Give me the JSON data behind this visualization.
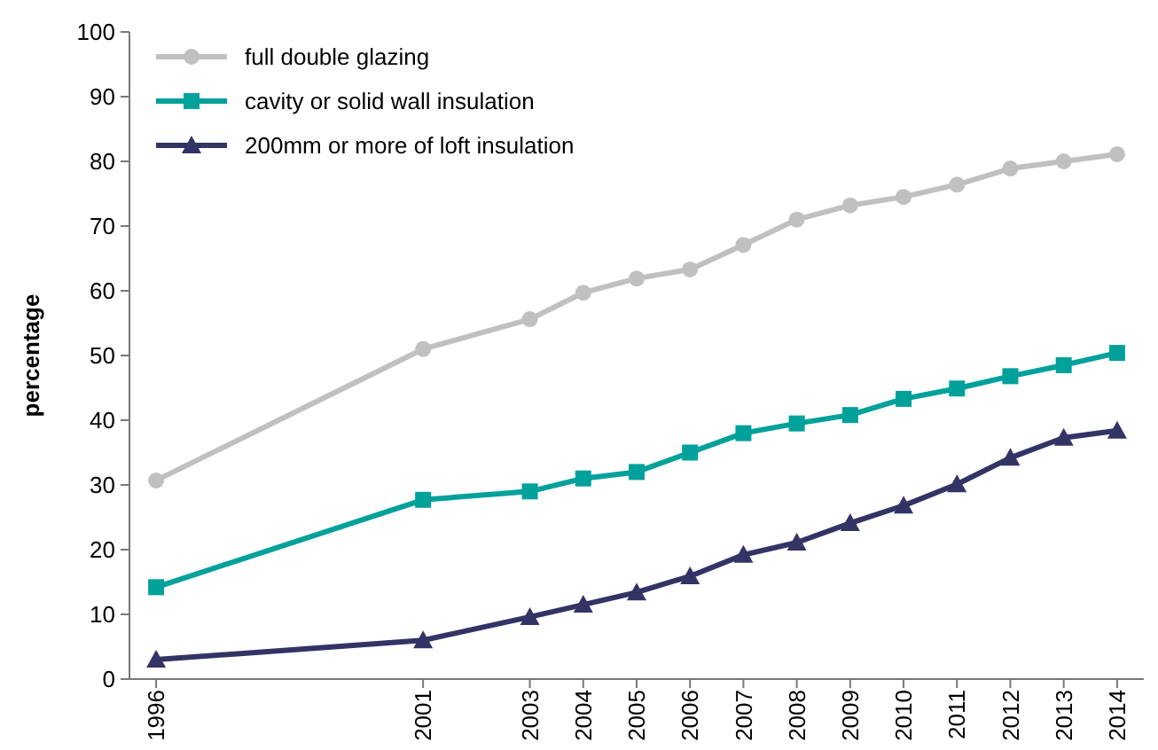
{
  "chart_data": {
    "type": "line",
    "ylabel": "percentage",
    "ylim": [
      0,
      100
    ],
    "yticks": [
      0,
      10,
      20,
      30,
      40,
      50,
      60,
      70,
      80,
      90,
      100
    ],
    "xlim": [
      1995.5,
      2014.5
    ],
    "xticks": [
      1996,
      2001,
      2003,
      2004,
      2005,
      2006,
      2007,
      2008,
      2009,
      2010,
      2011,
      2012,
      2013,
      2014
    ],
    "x": [
      1996,
      2001,
      2003,
      2004,
      2005,
      2006,
      2007,
      2008,
      2009,
      2010,
      2011,
      2012,
      2013,
      2014
    ],
    "grid": false,
    "legend": "top left",
    "line_style": "solid",
    "series": [
      {
        "name": "full double glazing",
        "color": "#c0c0c0",
        "marker": "circle",
        "values": [
          30.7,
          51,
          55.6,
          59.7,
          61.9,
          63.3,
          67.1,
          71,
          73.2,
          74.5,
          76.4,
          78.9,
          80,
          81.1
        ]
      },
      {
        "name": "cavity or solid wall insulation",
        "color": "#00a19a",
        "marker": "square",
        "values": [
          14.2,
          27.7,
          29,
          31,
          32,
          35,
          38,
          39.5,
          40.8,
          43.3,
          44.9,
          46.8,
          48.5,
          50.4
        ]
      },
      {
        "name": "200mm or more of loft insulation",
        "color": "#333366",
        "marker": "triangle",
        "values": [
          3,
          6,
          9.6,
          11.5,
          13.4,
          15.9,
          19.2,
          21.1,
          24.1,
          26.8,
          30.1,
          34.2,
          37.3,
          38.4
        ]
      }
    ]
  }
}
